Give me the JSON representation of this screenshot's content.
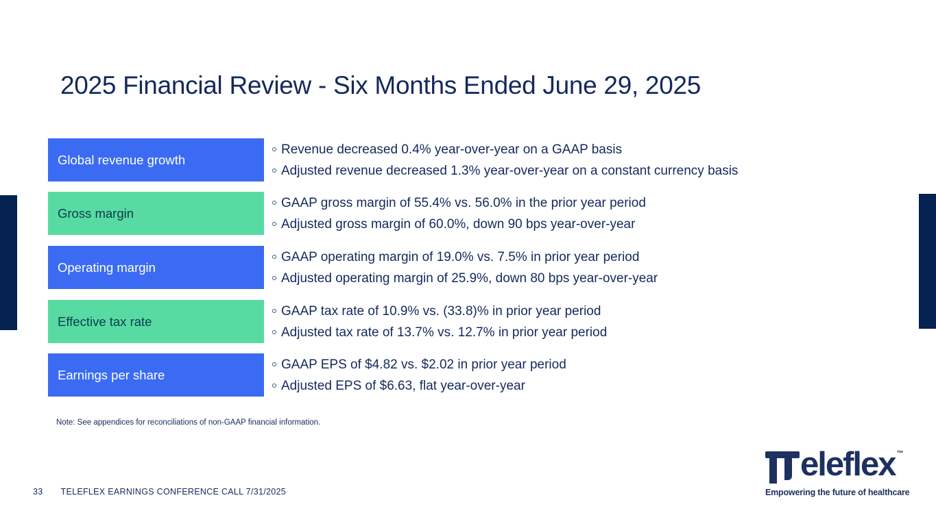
{
  "slide": {
    "title": "2025 Financial Review - Six Months Ended June 29, 2025",
    "rows": [
      {
        "label": "Global revenue growth",
        "color": "blue",
        "bullets": [
          "Revenue decreased 0.4% year-over-year on a GAAP basis",
          "Adjusted revenue decreased 1.3% year-over-year on a constant currency basis"
        ]
      },
      {
        "label": "Gross margin",
        "color": "green",
        "bullets": [
          "GAAP gross margin of 55.4% vs. 56.0% in the prior year period",
          "Adjusted gross margin of 60.0%, down 90 bps year-over-year"
        ]
      },
      {
        "label": "Operating margin",
        "color": "blue",
        "bullets": [
          "GAAP operating margin of 19.0% vs. 7.5% in prior year period",
          "Adjusted operating margin of 25.9%, down 80 bps year-over-year"
        ]
      },
      {
        "label": "Effective tax rate",
        "color": "green",
        "bullets": [
          "GAAP tax rate of 10.9% vs. (33.8)% in prior year period",
          "Adjusted tax rate of 13.7% vs. 12.7% in prior year period"
        ]
      },
      {
        "label": "Earnings per share",
        "color": "blue",
        "bullets": [
          "GAAP EPS of $4.82 vs. $2.02 in prior year period",
          "Adjusted EPS of $6.63, flat year-over-year"
        ]
      }
    ],
    "note": "Note: See appendices for reconciliations of non-GAAP financial information.",
    "footer": {
      "page_number": "33",
      "text": "TELEFLEX EARNINGS CONFERENCE CALL 7/31/2025"
    },
    "logo": {
      "brand": "Teleflex",
      "wordmark_rest": "eleflex",
      "trademark": "™",
      "tagline": "Empowering the future of healthcare"
    },
    "colors": {
      "accent_blue": "#3A6BF2",
      "accent_green": "#57DBA3",
      "navy_text": "#14295B",
      "green_box_text": "#0D3A4E",
      "side_bar_navy": "#052250",
      "logo_navy": "#1D3160"
    }
  }
}
